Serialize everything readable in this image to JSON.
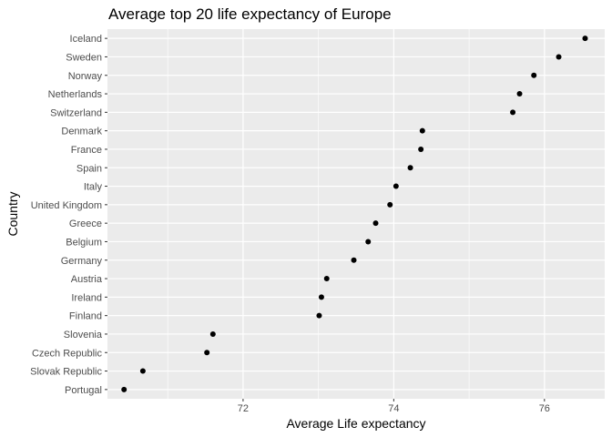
{
  "chart_data": {
    "type": "scatter",
    "title": "Average top 20 life expectancy of Europe",
    "xlabel": "Average Life expectancy",
    "ylabel": "Country",
    "xlim": [
      70.2,
      76.8
    ],
    "xticks": [
      72,
      74,
      76
    ],
    "x_minor_ticks": [
      71,
      73,
      75
    ],
    "grid": true,
    "categories": [
      "Iceland",
      "Sweden",
      "Norway",
      "Netherlands",
      "Switzerland",
      "Denmark",
      "France",
      "Spain",
      "Italy",
      "United Kingdom",
      "Greece",
      "Belgium",
      "Germany",
      "Austria",
      "Ireland",
      "Finland",
      "Slovenia",
      "Czech Republic",
      "Slovak Republic",
      "Portugal"
    ],
    "values": [
      76.54,
      76.19,
      75.86,
      75.67,
      75.58,
      74.38,
      74.36,
      74.22,
      74.03,
      73.95,
      73.76,
      73.66,
      73.47,
      73.11,
      73.04,
      73.01,
      71.6,
      71.52,
      70.67,
      70.42
    ],
    "colors": {
      "panel": "#EBEBEB",
      "grid_major": "#FFFFFF",
      "point": "#000000",
      "tick_text": "#4D4D4D",
      "tick_mark": "#333333"
    }
  }
}
